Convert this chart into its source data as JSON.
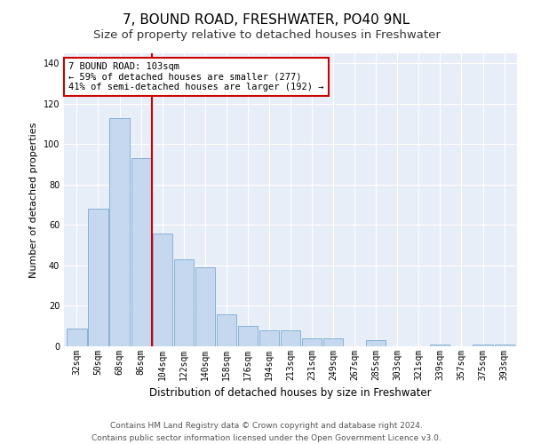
{
  "title": "7, BOUND ROAD, FRESHWATER, PO40 9NL",
  "subtitle": "Size of property relative to detached houses in Freshwater",
  "xlabel": "Distribution of detached houses by size in Freshwater",
  "ylabel": "Number of detached properties",
  "categories": [
    "32sqm",
    "50sqm",
    "68sqm",
    "86sqm",
    "104sqm",
    "122sqm",
    "140sqm",
    "158sqm",
    "176sqm",
    "194sqm",
    "213sqm",
    "231sqm",
    "249sqm",
    "267sqm",
    "285sqm",
    "303sqm",
    "321sqm",
    "339sqm",
    "357sqm",
    "375sqm",
    "393sqm"
  ],
  "values": [
    9,
    68,
    113,
    93,
    56,
    43,
    39,
    16,
    10,
    8,
    8,
    4,
    4,
    0,
    3,
    0,
    0,
    1,
    0,
    1,
    1
  ],
  "bar_color": "#c5d8f0",
  "bar_edge_color": "#7aaad0",
  "vline_x_index": 4,
  "vline_color": "#cc0000",
  "annotation_text": "7 BOUND ROAD: 103sqm\n← 59% of detached houses are smaller (277)\n41% of semi-detached houses are larger (192) →",
  "annotation_box_color": "#ffffff",
  "annotation_box_edge_color": "#cc0000",
  "ylim": [
    0,
    145
  ],
  "yticks": [
    0,
    20,
    40,
    60,
    80,
    100,
    120,
    140
  ],
  "plot_bg_color": "#e8eef7",
  "footer_line1": "Contains HM Land Registry data © Crown copyright and database right 2024.",
  "footer_line2": "Contains public sector information licensed under the Open Government Licence v3.0.",
  "title_fontsize": 11,
  "subtitle_fontsize": 9.5,
  "xlabel_fontsize": 8.5,
  "ylabel_fontsize": 8,
  "tick_fontsize": 7,
  "footer_fontsize": 6.5,
  "annotation_fontsize": 7.5
}
